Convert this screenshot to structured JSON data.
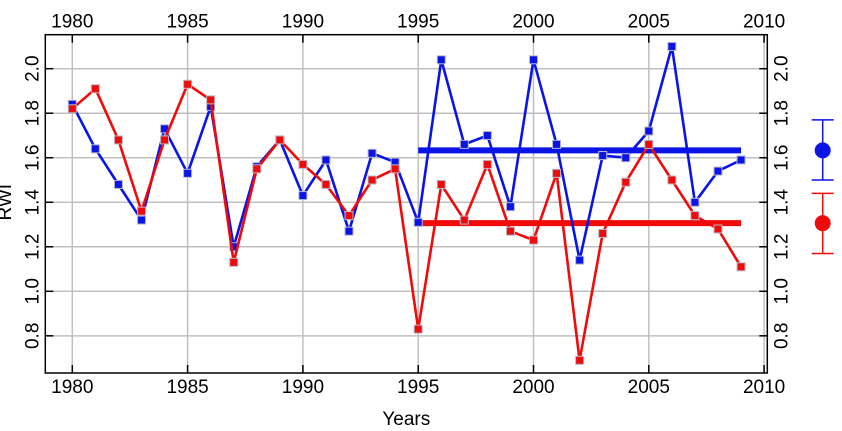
{
  "chart_data": {
    "type": "line",
    "title": "",
    "xlabel": "Years",
    "ylabel": "RWI",
    "xlim": [
      1978.8,
      2010.15
    ],
    "ylim": [
      0.63,
      2.164
    ],
    "x_ticks": [
      1980,
      1985,
      1990,
      1995,
      2000,
      2005,
      2010
    ],
    "y_ticks": [
      0.8,
      1.0,
      1.2,
      1.4,
      1.6,
      1.8,
      2.0
    ],
    "y_tick_labels": [
      "0.8",
      "1.0",
      "1.2",
      "1.4",
      "1.6",
      "1.8",
      "2.0"
    ],
    "grid": true,
    "x": [
      1980,
      1981,
      1982,
      1983,
      1984,
      1985,
      1986,
      1987,
      1988,
      1989,
      1990,
      1991,
      1992,
      1993,
      1994,
      1995,
      1996,
      1997,
      1998,
      1999,
      2000,
      2001,
      2002,
      2003,
      2004,
      2005,
      2006,
      2007,
      2008,
      2009
    ],
    "series": [
      {
        "name": "blue",
        "color": "#0a14e6",
        "values": [
          1.84,
          1.64,
          1.48,
          1.32,
          1.73,
          1.53,
          1.83,
          1.2,
          1.56,
          1.68,
          1.43,
          1.59,
          1.27,
          1.62,
          1.58,
          1.31,
          2.04,
          1.66,
          1.7,
          1.38,
          2.04,
          1.66,
          1.14,
          1.61,
          1.6,
          1.72,
          2.1,
          1.4,
          1.54,
          1.59
        ],
        "mean_line": {
          "value": 1.633,
          "x_start": 1995,
          "x_end": 2009
        },
        "legend_point": {
          "value": 1.633,
          "error_low": 1.5,
          "error_high": 1.77
        }
      },
      {
        "name": "red",
        "color": "#f00a0a",
        "values": [
          1.82,
          1.91,
          1.68,
          1.36,
          1.68,
          1.93,
          1.86,
          1.13,
          1.55,
          1.68,
          1.57,
          1.48,
          1.34,
          1.5,
          1.55,
          0.83,
          1.48,
          1.32,
          1.57,
          1.27,
          1.23,
          1.53,
          0.69,
          1.26,
          1.49,
          1.66,
          1.5,
          1.34,
          1.28,
          1.11
        ],
        "mean_line": {
          "value": 1.306,
          "x_start": 1995,
          "x_end": 2009
        },
        "legend_point": {
          "value": 1.306,
          "error_low": 1.17,
          "error_high": 1.44
        }
      }
    ],
    "legend_position": "right (error-bar markers)"
  }
}
